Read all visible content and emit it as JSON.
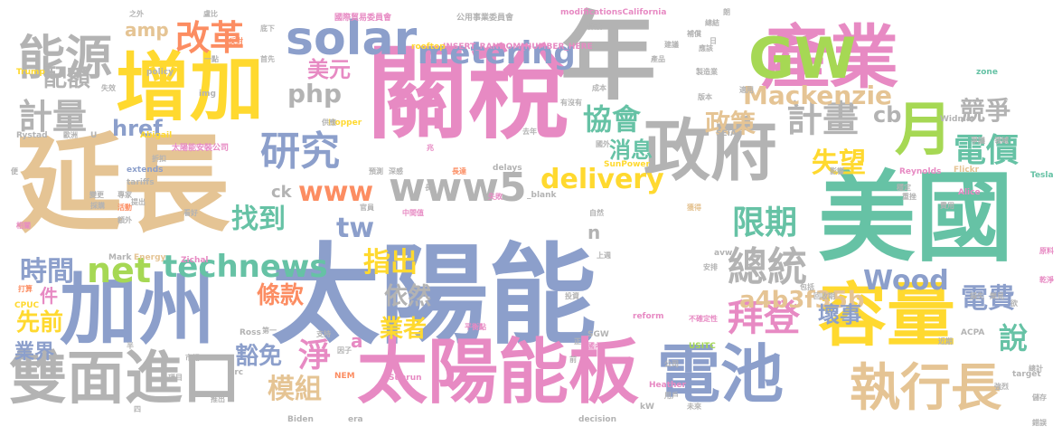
{
  "palette": {
    "blue": "#8c9fcb",
    "green": "#66c2a5",
    "orange": "#fc8d62",
    "pink": "#e78ac3",
    "lime": "#a6d854",
    "yellow": "#ffd92f",
    "tan": "#e5c494",
    "gray": "#b3b3b3"
  },
  "words": [
    {
      "text": "太陽能",
      "color": "blue"
    },
    {
      "text": "延長",
      "color": "tan"
    },
    {
      "text": "關稅",
      "color": "pink"
    },
    {
      "text": "年",
      "color": "gray"
    },
    {
      "text": "美國",
      "color": "green"
    },
    {
      "text": "產業",
      "color": "pink"
    },
    {
      "text": "增加",
      "color": "yellow"
    },
    {
      "text": "加州",
      "color": "blue"
    },
    {
      "text": "容量",
      "color": "yellow"
    },
    {
      "text": "太陽能板",
      "color": "pink"
    },
    {
      "text": "雙面進口",
      "color": "gray"
    },
    {
      "text": "電池",
      "color": "blue"
    },
    {
      "text": "政府",
      "color": "gray"
    },
    {
      "text": "GW",
      "color": "lime"
    },
    {
      "text": "能源",
      "color": "gray"
    },
    {
      "text": "solar",
      "color": "blue"
    },
    {
      "text": "月",
      "color": "lime"
    },
    {
      "text": "執行長",
      "color": "tan"
    },
    {
      "text": "www5",
      "color": "gray"
    },
    {
      "text": "研究",
      "color": "blue"
    },
    {
      "text": "metering",
      "color": "blue"
    },
    {
      "text": "電價",
      "color": "green"
    },
    {
      "text": "計畫",
      "color": "gray"
    },
    {
      "text": "拜登",
      "color": "pink"
    },
    {
      "text": "總統",
      "color": "gray"
    },
    {
      "text": "限期",
      "color": "green"
    },
    {
      "text": "改革",
      "color": "orange"
    },
    {
      "text": "net",
      "color": "lime"
    },
    {
      "text": "technews",
      "color": "green"
    },
    {
      "text": "delivery",
      "color": "yellow"
    },
    {
      "text": "www",
      "color": "orange"
    },
    {
      "text": "計量",
      "color": "gray"
    },
    {
      "text": "協會",
      "color": "green"
    },
    {
      "text": "失望",
      "color": "yellow"
    },
    {
      "text": "政策",
      "color": "tan"
    },
    {
      "text": "Mackenzie",
      "color": "tan"
    },
    {
      "text": "競爭",
      "color": "gray"
    },
    {
      "text": "說",
      "color": "green"
    },
    {
      "text": "電費",
      "color": "blue"
    },
    {
      "text": "時間",
      "color": "blue"
    },
    {
      "text": "找到",
      "color": "green"
    },
    {
      "text": "指出",
      "color": "yellow"
    },
    {
      "text": "淨",
      "color": "pink"
    },
    {
      "text": "模組",
      "color": "tan"
    },
    {
      "text": "Wood",
      "color": "blue"
    },
    {
      "text": "php",
      "color": "gray"
    },
    {
      "text": "tw",
      "color": "blue"
    },
    {
      "text": "美元",
      "color": "pink"
    },
    {
      "text": "配額",
      "color": "gray"
    },
    {
      "text": "href",
      "color": "blue"
    },
    {
      "text": "a4b3f35b",
      "color": "tan"
    },
    {
      "text": "條款",
      "color": "orange"
    },
    {
      "text": "依然",
      "color": "gray"
    },
    {
      "text": "先前",
      "color": "yellow"
    },
    {
      "text": "業者",
      "color": "yellow"
    },
    {
      "text": "豁免",
      "color": "blue"
    },
    {
      "text": "壞事",
      "color": "blue"
    },
    {
      "text": "消息",
      "color": "green"
    },
    {
      "text": "業界",
      "color": "blue"
    },
    {
      "text": "cb",
      "color": "gray"
    },
    {
      "text": "amp",
      "color": "tan"
    },
    {
      "text": "ck",
      "color": "gray"
    },
    {
      "text": "件",
      "color": "pink"
    },
    {
      "text": "n",
      "color": "gray"
    },
    {
      "text": "a",
      "color": "pink"
    },
    {
      "text": "國際貿易委員會",
      "color": "pink"
    },
    {
      "text": "公用事業委員會",
      "color": "gray"
    },
    {
      "text": "modificationsCalifornia",
      "color": "pink"
    },
    {
      "text": "INSERT_RANDOM_NUMBER_HERE",
      "color": "pink"
    },
    {
      "text": "rooftop",
      "color": "yellow"
    },
    {
      "text": "policy",
      "color": "gray"
    },
    {
      "text": "Trump",
      "color": "yellow"
    },
    {
      "text": "Rystad",
      "color": "gray"
    },
    {
      "text": "Abigail",
      "color": "yellow"
    },
    {
      "text": "Hopper",
      "color": "yellow"
    },
    {
      "text": "SEIA",
      "color": "gray"
    },
    {
      "text": "Reynolds",
      "color": "pink"
    },
    {
      "text": "Widmar",
      "color": "gray"
    },
    {
      "text": "zone",
      "color": "green"
    },
    {
      "text": "Tesla",
      "color": "green"
    },
    {
      "text": "Flickr",
      "color": "tan"
    },
    {
      "text": "Alice",
      "color": "pink"
    },
    {
      "text": "SunPower",
      "color": "yellow"
    },
    {
      "text": "delays",
      "color": "gray"
    },
    {
      "text": "extends",
      "color": "blue"
    },
    {
      "text": "tariffs",
      "color": "gray"
    },
    {
      "text": "Energy",
      "color": "tan"
    },
    {
      "text": "Zichal",
      "color": "pink"
    },
    {
      "text": "Mark",
      "color": "gray"
    },
    {
      "text": "CPUC",
      "color": "yellow"
    },
    {
      "text": "Ross",
      "color": "gray"
    },
    {
      "text": "reform",
      "color": "pink"
    },
    {
      "text": "USITC",
      "color": "lime"
    },
    {
      "text": "SGW",
      "color": "gray"
    },
    {
      "text": "ACPA",
      "color": "gray"
    },
    {
      "text": "Sunrun",
      "color": "pink"
    },
    {
      "text": "NEM",
      "color": "orange"
    },
    {
      "text": "Biden",
      "color": "gray"
    },
    {
      "text": "era",
      "color": "gray"
    },
    {
      "text": "src",
      "color": "gray"
    },
    {
      "text": "Heather",
      "color": "pink"
    },
    {
      "text": "kW",
      "color": "gray"
    },
    {
      "text": "target",
      "color": "gray"
    },
    {
      "text": "decision",
      "color": "gray"
    },
    {
      "text": "avw",
      "color": "gray"
    },
    {
      "text": "_blank",
      "color": "gray"
    },
    {
      "text": "img",
      "color": "gray"
    },
    {
      "text": "U",
      "color": "gray"
    },
    {
      "text": "太陽能安裝公司",
      "color": "pink"
    },
    {
      "text": "之外",
      "color": "gray"
    },
    {
      "text": "盧比",
      "color": "gray"
    },
    {
      "text": "反對",
      "color": "orange"
    },
    {
      "text": "成本",
      "color": "gray"
    },
    {
      "text": "專家",
      "color": "gray"
    },
    {
      "text": "回收期",
      "color": "gray"
    },
    {
      "text": "不確定性",
      "color": "pink"
    },
    {
      "text": "中間值",
      "color": "pink"
    },
    {
      "text": "平衡點",
      "color": "pink"
    },
    {
      "text": "預測",
      "color": "gray"
    },
    {
      "text": "深感",
      "color": "gray"
    },
    {
      "text": "長達",
      "color": "orange"
    },
    {
      "text": "失敗",
      "color": "pink"
    },
    {
      "text": "應該",
      "color": "gray"
    },
    {
      "text": "獲得",
      "color": "tan"
    },
    {
      "text": "影響",
      "color": "gray"
    },
    {
      "text": "費用",
      "color": "gray"
    },
    {
      "text": "原料",
      "color": "pink"
    },
    {
      "text": "乾淨",
      "color": "pink"
    },
    {
      "text": "儲存",
      "color": "gray"
    },
    {
      "text": "總結",
      "color": "gray"
    },
    {
      "text": "保護",
      "color": "gray"
    },
    {
      "text": "穩定",
      "color": "gray"
    },
    {
      "text": "支持",
      "color": "gray"
    },
    {
      "text": "打算",
      "color": "orange"
    },
    {
      "text": "國內",
      "color": "pink"
    },
    {
      "text": "用戶",
      "color": "gray"
    },
    {
      "text": "未來",
      "color": "gray"
    },
    {
      "text": "公司",
      "color": "gray"
    },
    {
      "text": "市場",
      "color": "gray"
    },
    {
      "text": "活動",
      "color": "orange"
    },
    {
      "text": "製造業",
      "color": "gray"
    },
    {
      "text": "產品",
      "color": "gray"
    },
    {
      "text": "包括",
      "color": "gray"
    },
    {
      "text": "第一",
      "color": "gray"
    },
    {
      "text": "上週",
      "color": "gray"
    },
    {
      "text": "去年",
      "color": "gray"
    },
    {
      "text": "自然",
      "color": "gray"
    },
    {
      "text": "重挫",
      "color": "gray"
    },
    {
      "text": "版本",
      "color": "gray"
    },
    {
      "text": "官員",
      "color": "gray"
    },
    {
      "text": "兆",
      "color": "pink"
    },
    {
      "text": "一點",
      "color": "gray"
    },
    {
      "text": "底下",
      "color": "gray"
    },
    {
      "text": "供應",
      "color": "gray"
    },
    {
      "text": "有沒有",
      "color": "gray"
    },
    {
      "text": "折扣",
      "color": "gray"
    },
    {
      "text": "相關",
      "color": "pink"
    },
    {
      "text": "首先",
      "color": "gray"
    },
    {
      "text": "建議",
      "color": "gray"
    },
    {
      "text": "領域",
      "color": "gray"
    },
    {
      "text": "爭議",
      "color": "gray"
    },
    {
      "text": "提出",
      "color": "gray"
    },
    {
      "text": "因子",
      "color": "gray"
    },
    {
      "text": "安排",
      "color": "gray"
    },
    {
      "text": "樂見",
      "color": "gray"
    },
    {
      "text": "推出",
      "color": "gray"
    },
    {
      "text": "總計",
      "color": "gray"
    },
    {
      "text": "額外",
      "color": "gray"
    },
    {
      "text": "適用",
      "color": "gray"
    },
    {
      "text": "補償",
      "color": "gray"
    },
    {
      "text": "國外",
      "color": "gray"
    },
    {
      "text": "損失",
      "color": "gray"
    },
    {
      "text": "近期",
      "color": "gray"
    },
    {
      "text": "強烈",
      "color": "gray"
    },
    {
      "text": "錯誤",
      "color": "gray"
    },
    {
      "text": "失效",
      "color": "gray"
    },
    {
      "text": "欲",
      "color": "gray"
    },
    {
      "text": "項目",
      "color": "gray"
    },
    {
      "text": "投資",
      "color": "gray"
    },
    {
      "text": "採購",
      "color": "gray"
    },
    {
      "text": "變更",
      "color": "gray"
    },
    {
      "text": "歐洲",
      "color": "gray"
    },
    {
      "text": "看好",
      "color": "gray"
    },
    {
      "text": "正",
      "color": "gray"
    },
    {
      "text": "前",
      "color": "gray"
    },
    {
      "text": "長",
      "color": "gray"
    },
    {
      "text": "半",
      "color": "gray"
    },
    {
      "text": "便",
      "color": "gray"
    },
    {
      "text": "四",
      "color": "gray"
    },
    {
      "text": "日",
      "color": "gray"
    },
    {
      "text": "朗",
      "color": "gray"
    }
  ]
}
